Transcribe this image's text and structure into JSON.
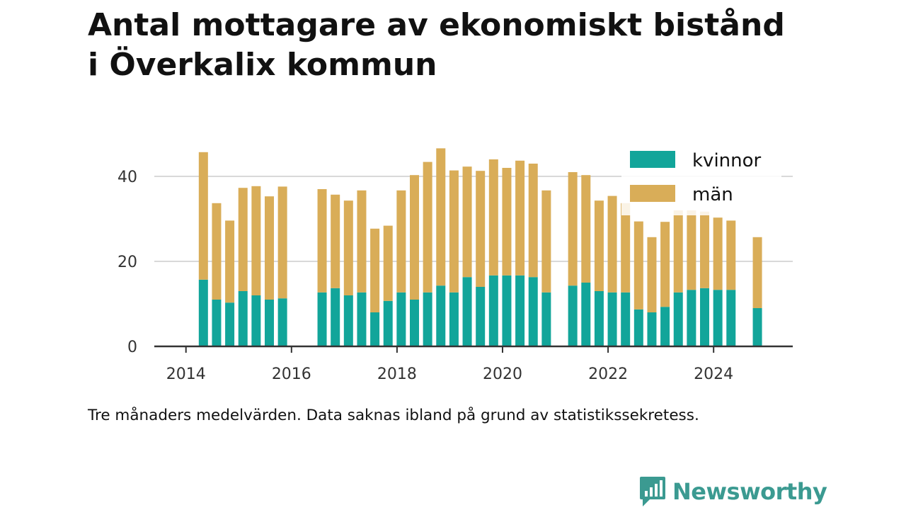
{
  "title": {
    "line1": "Antal mottagare av ekonomiskt bistånd",
    "line2": "i Överkalix kommun"
  },
  "caption": "Tre månaders medelvärden. Data saknas ibland på grund av statistikssekretess.",
  "brand": {
    "name": "Newsworthy",
    "icon": "newsworthy-logo-icon",
    "color": "#3b9a91"
  },
  "colors": {
    "kvinnor": "#12a59a",
    "man": "#d9ad58",
    "grid": "#d9d9d9",
    "axis": "#333333"
  },
  "chart_data": {
    "type": "bar",
    "stacked": true,
    "title": "Antal mottagare av ekonomiskt bistånd i Överkalix kommun",
    "xlabel": "",
    "ylabel": "",
    "xlim": [
      2013.4,
      2025.5
    ],
    "ylim": [
      0,
      47
    ],
    "yticks": [
      0,
      20,
      40
    ],
    "xticks": [
      2014,
      2016,
      2018,
      2020,
      2022,
      2024
    ],
    "grid": "horizontal",
    "legend_position": "top-right",
    "x": [
      2014.33,
      2014.58,
      2014.83,
      2015.08,
      2015.33,
      2015.58,
      2015.83,
      2016.58,
      2016.83,
      2017.08,
      2017.33,
      2017.58,
      2017.83,
      2018.08,
      2018.33,
      2018.58,
      2018.83,
      2019.08,
      2019.33,
      2019.58,
      2019.83,
      2020.08,
      2020.33,
      2020.58,
      2020.83,
      2021.33,
      2021.58,
      2021.83,
      2022.08,
      2022.33,
      2022.58,
      2022.83,
      2023.08,
      2023.33,
      2023.58,
      2023.83,
      2024.08,
      2024.33,
      2024.83
    ],
    "series": [
      {
        "name": "kvinnor",
        "color": "#12a59a",
        "values": [
          15.7,
          11,
          10.3,
          13,
          12,
          11,
          11.3,
          12.7,
          13.7,
          12,
          12.7,
          8,
          10.7,
          12.7,
          11,
          12.7,
          14.3,
          12.7,
          16.3,
          14,
          16.7,
          16.7,
          16.7,
          16.3,
          12.7,
          14.3,
          15,
          13,
          12.7,
          12.7,
          8.7,
          8,
          9.3,
          12.7,
          13.3,
          13.7,
          13.3,
          13.3,
          9
        ]
      },
      {
        "name": "män",
        "color": "#d9ad58",
        "values": [
          30,
          22.7,
          19.3,
          24.3,
          25.7,
          24.3,
          26.3,
          24.3,
          22,
          22.3,
          24,
          19.7,
          17.7,
          24,
          29.3,
          30.7,
          32.3,
          28.7,
          26,
          27.3,
          27.3,
          25.3,
          27,
          26.7,
          24,
          26.7,
          25.3,
          21.3,
          22.7,
          21,
          20.7,
          17.7,
          20,
          19.3,
          18.7,
          18,
          17,
          16.3,
          16.7
        ]
      }
    ]
  }
}
